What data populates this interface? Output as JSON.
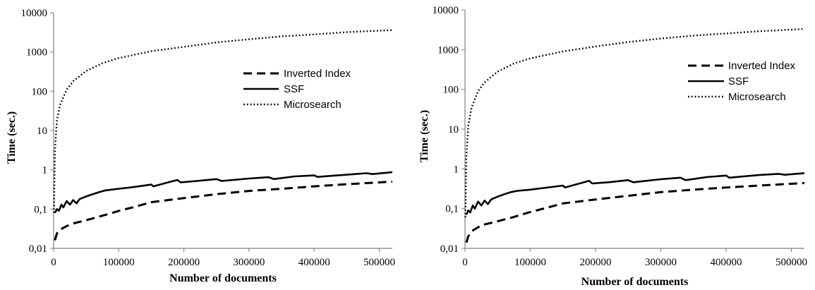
{
  "chart_data": [
    {
      "type": "line",
      "xlabel": "Number of documents",
      "ylabel": "Time  (sec.)",
      "xlim": [
        0,
        520000
      ],
      "ylim": [
        0.01,
        10000
      ],
      "yscale": "log",
      "grid": false,
      "legend_position": "right",
      "x_ticks": [
        "0",
        "100000",
        "200000",
        "300000",
        "400000",
        "500000"
      ],
      "y_ticks": [
        "0,01",
        "0,1",
        "1",
        "10",
        "100",
        "1000",
        "10000"
      ],
      "series": [
        {
          "name": "Inverted Index",
          "style": "dashed",
          "x": [
            2000,
            5000,
            10000,
            20000,
            30000,
            50000,
            75000,
            100000,
            125000,
            150000,
            200000,
            250000,
            300000,
            350000,
            400000,
            450000,
            520000
          ],
          "y": [
            0.016,
            0.024,
            0.03,
            0.037,
            0.043,
            0.052,
            0.068,
            0.09,
            0.115,
            0.15,
            0.19,
            0.24,
            0.29,
            0.33,
            0.38,
            0.43,
            0.5
          ]
        },
        {
          "name": "SSF",
          "style": "solid",
          "x": [
            2000,
            5000,
            8000,
            12000,
            15000,
            20000,
            25000,
            30000,
            35000,
            40000,
            50000,
            60000,
            70000,
            80000,
            100000,
            120000,
            150000,
            153000,
            180000,
            190000,
            195000,
            220000,
            250000,
            258000,
            300000,
            330000,
            338000,
            370000,
            400000,
            405000,
            450000,
            480000,
            490000,
            520000
          ],
          "y": [
            0.08,
            0.1,
            0.09,
            0.13,
            0.11,
            0.16,
            0.13,
            0.17,
            0.14,
            0.18,
            0.21,
            0.24,
            0.27,
            0.3,
            0.33,
            0.36,
            0.42,
            0.38,
            0.5,
            0.55,
            0.48,
            0.52,
            0.58,
            0.52,
            0.6,
            0.65,
            0.58,
            0.68,
            0.72,
            0.66,
            0.75,
            0.82,
            0.78,
            0.87
          ]
        },
        {
          "name": "Microsearch",
          "style": "dotted",
          "x": [
            500,
            2000,
            5000,
            10000,
            20000,
            30000,
            50000,
            75000,
            100000,
            150000,
            200000,
            250000,
            300000,
            350000,
            400000,
            450000,
            520000
          ],
          "y": [
            0.08,
            3,
            18,
            45,
            110,
            180,
            330,
            520,
            700,
            1050,
            1350,
            1750,
            2100,
            2500,
            2800,
            3200,
            3600
          ]
        }
      ]
    },
    {
      "type": "line",
      "xlabel": "Number of documents",
      "ylabel": "Time  (sec.)",
      "xlim": [
        0,
        520000
      ],
      "ylim": [
        0.01,
        10000
      ],
      "yscale": "log",
      "grid": false,
      "legend_position": "right",
      "x_ticks": [
        "0",
        "100000",
        "200000",
        "300000",
        "400000",
        "500000"
      ],
      "y_ticks": [
        "0,01",
        "0,1",
        "1",
        "10",
        "100",
        "1000",
        "10000"
      ],
      "series": [
        {
          "name": "Inverted Index",
          "style": "dashed",
          "x": [
            2000,
            5000,
            10000,
            20000,
            30000,
            50000,
            75000,
            100000,
            125000,
            150000,
            200000,
            250000,
            300000,
            350000,
            400000,
            450000,
            520000
          ],
          "y": [
            0.014,
            0.02,
            0.027,
            0.034,
            0.04,
            0.048,
            0.062,
            0.082,
            0.105,
            0.135,
            0.17,
            0.21,
            0.26,
            0.3,
            0.34,
            0.38,
            0.44
          ]
        },
        {
          "name": "SSF",
          "style": "solid",
          "x": [
            2000,
            5000,
            8000,
            12000,
            15000,
            20000,
            25000,
            30000,
            35000,
            40000,
            50000,
            60000,
            70000,
            80000,
            100000,
            120000,
            150000,
            153000,
            180000,
            190000,
            195000,
            220000,
            250000,
            258000,
            300000,
            330000,
            338000,
            370000,
            400000,
            405000,
            450000,
            480000,
            490000,
            520000
          ],
          "y": [
            0.07,
            0.09,
            0.08,
            0.12,
            0.1,
            0.15,
            0.12,
            0.16,
            0.13,
            0.17,
            0.2,
            0.23,
            0.26,
            0.28,
            0.3,
            0.33,
            0.38,
            0.34,
            0.45,
            0.5,
            0.43,
            0.46,
            0.52,
            0.46,
            0.55,
            0.6,
            0.52,
            0.62,
            0.68,
            0.6,
            0.7,
            0.75,
            0.71,
            0.78
          ]
        },
        {
          "name": "Microsearch",
          "style": "dotted",
          "x": [
            500,
            2000,
            5000,
            10000,
            20000,
            30000,
            50000,
            75000,
            100000,
            150000,
            200000,
            250000,
            300000,
            350000,
            400000,
            450000,
            520000
          ],
          "y": [
            0.06,
            2,
            12,
            35,
            90,
            150,
            280,
            450,
            600,
            900,
            1200,
            1550,
            1900,
            2250,
            2550,
            2900,
            3300
          ]
        }
      ]
    }
  ]
}
